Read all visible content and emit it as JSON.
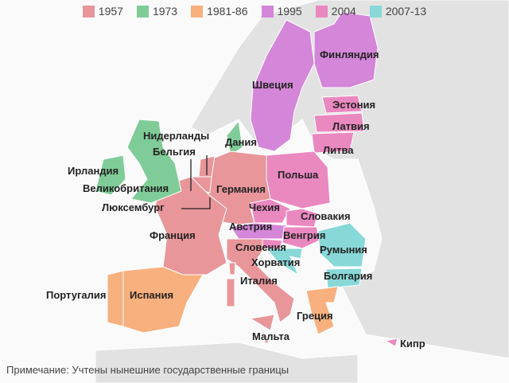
{
  "legend": [
    {
      "label": "1957",
      "color": "#e8969a"
    },
    {
      "label": "1973",
      "color": "#80cc98"
    },
    {
      "label": "1981-86",
      "color": "#f8b07e"
    },
    {
      "label": "1995",
      "color": "#d486d8"
    },
    {
      "label": "2004",
      "color": "#ea88c0"
    },
    {
      "label": "2007-13",
      "color": "#88d8d8"
    }
  ],
  "countries": {
    "finland": "Финляндия",
    "sweden": "Швеция",
    "estonia": "Эстония",
    "latvia": "Латвия",
    "lithuania": "Литва",
    "netherlands": "Нидерланды",
    "belgium": "Бельгия",
    "denmark": "Дания",
    "ireland": "Ирландия",
    "uk": "Великобритания",
    "germany": "Германия",
    "poland": "Польша",
    "luxembourg": "Люксембург",
    "czechia": "Чехия",
    "slovakia": "Словакия",
    "austria": "Австрия",
    "hungary": "Венгрия",
    "france": "Франция",
    "slovenia": "Словения",
    "romania": "Румыния",
    "croatia": "Хорватия",
    "italy": "Италия",
    "bulgaria": "Болгария",
    "portugal": "Португалия",
    "spain": "Испания",
    "greece": "Греция",
    "malta": "Мальта",
    "cyprus": "Кипр"
  },
  "note": "Примечание: Учтены нынешние государственные границы"
}
